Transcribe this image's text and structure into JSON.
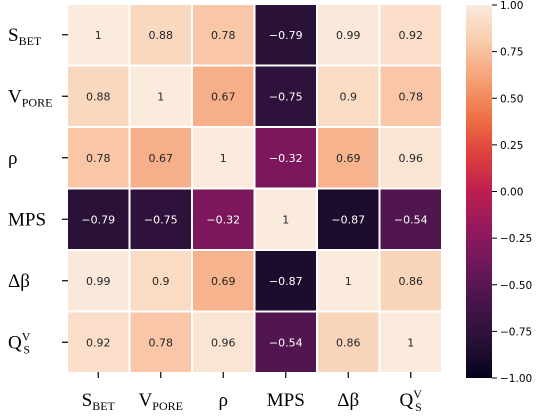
{
  "chart_data": {
    "type": "heatmap",
    "title": "",
    "xlabel": "",
    "ylabel": "",
    "row_labels": [
      {
        "main": "S",
        "sub": "BET",
        "sup": ""
      },
      {
        "main": "V",
        "sub": "PORE",
        "sup": ""
      },
      {
        "main": "ρ",
        "sub": "",
        "sup": ""
      },
      {
        "main": "MPS",
        "sub": "",
        "sup": ""
      },
      {
        "main": "Δβ",
        "sub": "",
        "sup": ""
      },
      {
        "main": "Q",
        "sub": "S",
        "sup": "V"
      }
    ],
    "col_labels": [
      {
        "main": "S",
        "sub": "BET",
        "sup": ""
      },
      {
        "main": "V",
        "sub": "PORE",
        "sup": ""
      },
      {
        "main": "ρ",
        "sub": "",
        "sup": ""
      },
      {
        "main": "MPS",
        "sub": "",
        "sup": ""
      },
      {
        "main": "Δβ",
        "sub": "",
        "sup": ""
      },
      {
        "main": "Q",
        "sub": "S",
        "sup": "V"
      }
    ],
    "values": [
      [
        1,
        0.88,
        0.78,
        -0.79,
        0.99,
        0.92
      ],
      [
        0.88,
        1,
        0.67,
        -0.75,
        0.9,
        0.78
      ],
      [
        0.78,
        0.67,
        1,
        -0.32,
        0.69,
        0.96
      ],
      [
        -0.79,
        -0.75,
        -0.32,
        1,
        -0.87,
        -0.54
      ],
      [
        0.99,
        0.9,
        0.69,
        -0.87,
        1,
        0.86
      ],
      [
        0.92,
        0.78,
        0.96,
        -0.54,
        0.86,
        1
      ]
    ],
    "cell_text": [
      [
        "1",
        "0.88",
        "0.78",
        "−0.79",
        "0.99",
        "0.92"
      ],
      [
        "0.88",
        "1",
        "0.67",
        "−0.75",
        "0.9",
        "0.78"
      ],
      [
        "0.78",
        "0.67",
        "1",
        "−0.32",
        "0.69",
        "0.96"
      ],
      [
        "−0.79",
        "−0.75",
        "−0.32",
        "1",
        "−0.87",
        "−0.54"
      ],
      [
        "0.99",
        "0.9",
        "0.69",
        "−0.87",
        "1",
        "0.86"
      ],
      [
        "0.92",
        "0.78",
        "0.96",
        "−0.54",
        "0.86",
        "1"
      ]
    ],
    "colorbar": {
      "range": [
        -1,
        1
      ],
      "ticks": [
        1.0,
        0.75,
        0.5,
        0.25,
        0.0,
        -0.25,
        -0.5,
        -0.75,
        -1.0
      ],
      "tick_labels": [
        "1.00",
        "0.75",
        "0.50",
        "0.25",
        "0.00",
        "−0.25",
        "−0.50",
        "−0.75",
        "−1.00"
      ]
    },
    "colormap": "rocket",
    "grid": false
  }
}
